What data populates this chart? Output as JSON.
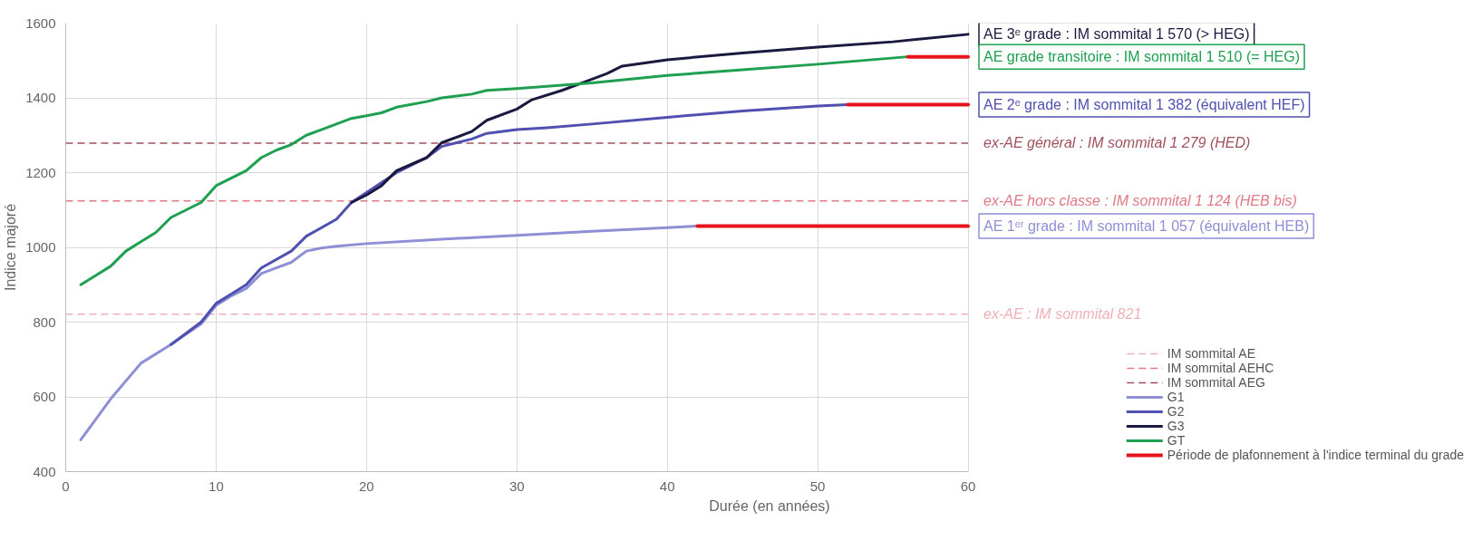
{
  "chart_data": {
    "type": "line",
    "xlabel": "Durée (en années)",
    "ylabel": "Indice majoré",
    "xlim": [
      0,
      60
    ],
    "xticks": [
      0,
      10,
      20,
      30,
      40,
      50,
      60
    ],
    "ylim": [
      400,
      1600
    ],
    "yticks": [
      400,
      600,
      800,
      1000,
      1200,
      1400,
      1600
    ],
    "grid": true,
    "legend": "bottom right",
    "line_style": "solid",
    "series": [
      {
        "name": "G1",
        "color": "#8f8fd6",
        "x": [
          1,
          3,
          5,
          7,
          9,
          10,
          11,
          12,
          13,
          14,
          15,
          16,
          17,
          18,
          20,
          25,
          30,
          35,
          40,
          42
        ],
        "values": [
          485,
          595,
          690,
          740,
          795,
          845,
          870,
          890,
          930,
          945,
          960,
          990,
          998,
          1003,
          1010,
          1022,
          1032,
          1043,
          1053,
          1057
        ]
      },
      {
        "name": "G2",
        "color": "#5050b0",
        "x": [
          7,
          9,
          10,
          12,
          13,
          15,
          16,
          18,
          19,
          22,
          24,
          25,
          26,
          27,
          28,
          30,
          32,
          35,
          40,
          45,
          50,
          52
        ],
        "values": [
          740,
          800,
          850,
          900,
          945,
          990,
          1030,
          1075,
          1120,
          1200,
          1240,
          1270,
          1280,
          1290,
          1305,
          1315,
          1320,
          1330,
          1348,
          1365,
          1378,
          1382
        ]
      },
      {
        "name": "G3",
        "color": "#1a1a40",
        "x": [
          19,
          20,
          21,
          22,
          24,
          25,
          27,
          28,
          30,
          31,
          33,
          35,
          36,
          37,
          40,
          45,
          50,
          55,
          60
        ],
        "values": [
          1120,
          1140,
          1165,
          1205,
          1240,
          1280,
          1310,
          1340,
          1370,
          1395,
          1420,
          1450,
          1465,
          1485,
          1502,
          1520,
          1536,
          1550,
          1570
        ]
      },
      {
        "name": "GT",
        "color": "#1ea050",
        "x": [
          1,
          2,
          3,
          4,
          5,
          6,
          7,
          8,
          9,
          10,
          11,
          12,
          13,
          14,
          15,
          16,
          17,
          18,
          19,
          20,
          21,
          22,
          24,
          25,
          27,
          28,
          30,
          35,
          40,
          45,
          50,
          56
        ],
        "values": [
          900,
          925,
          950,
          990,
          1015,
          1040,
          1080,
          1100,
          1120,
          1165,
          1185,
          1205,
          1240,
          1260,
          1275,
          1300,
          1315,
          1330,
          1345,
          1352,
          1360,
          1375,
          1390,
          1400,
          1410,
          1420,
          1425,
          1440,
          1460,
          1475,
          1490,
          1510
        ]
      },
      {
        "name": "Période de plafonnement à l'indice terminal du grade",
        "color": "#e8141c",
        "x": [
          42,
          60
        ],
        "values": [
          1057,
          1057
        ]
      },
      {
        "color": "#e8141c",
        "x": [
          52,
          60
        ],
        "values": [
          1382,
          1382
        ]
      },
      {
        "color": "#e8141c",
        "x": [
          56,
          60
        ],
        "values": [
          1510,
          1510
        ]
      }
    ],
    "ref_lines": [
      {
        "axis": "y",
        "value": 821,
        "label": "IM sommital AE",
        "color": "#f0b0b8",
        "line_style": "dashed"
      },
      {
        "axis": "y",
        "value": 1124,
        "label": "IM sommital AEHC",
        "color": "#e07a84",
        "line_style": "dashed"
      },
      {
        "axis": "y",
        "value": 1279,
        "label": "IM sommital AEG",
        "color": "#a0505a",
        "line_style": "dashed"
      }
    ],
    "annotations": [
      "AE 3ᵉ grade : IM sommital 1 570 (> HEG)",
      "AE grade transitoire : IM sommital 1 510 (= HEG)",
      "AE 2ᵉ grade : IM sommital 1 382 (équivalent HEF)",
      "ex-AE général : IM sommital 1 279 (HED)",
      "ex-AE hors classe : IM sommital 1 124 (HEB bis)",
      "AE 1ᵉʳ grade : IM sommital 1 057 (équivalent HEB)",
      "ex-AE : IM sommital 821"
    ]
  }
}
